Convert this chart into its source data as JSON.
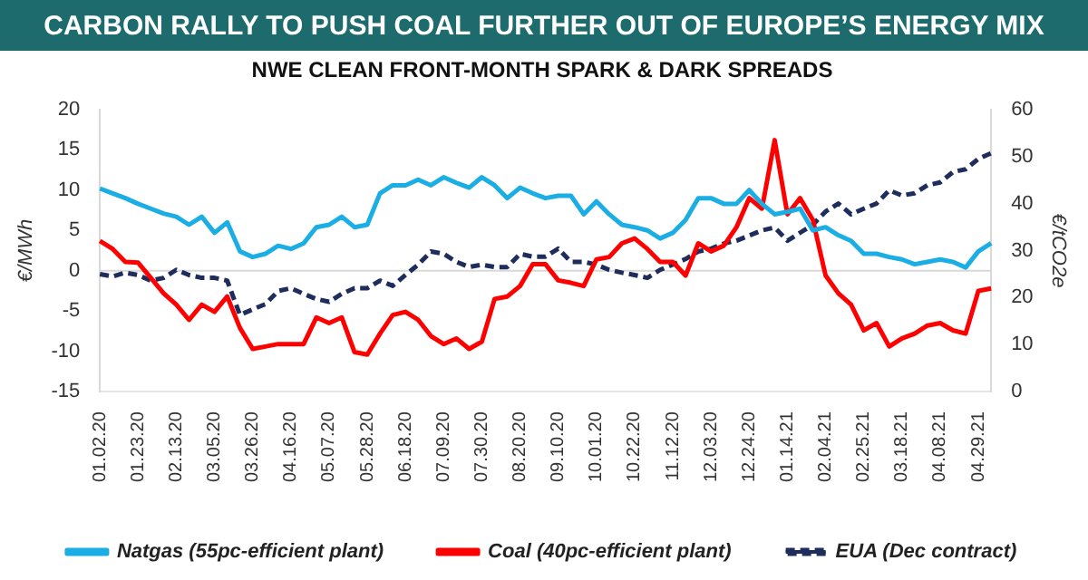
{
  "chart_data": {
    "type": "line",
    "title": "CARBON RALLY TO PUSH COAL FURTHER OUT OF EUROPE’S ENERGY MIX",
    "subtitle": "NWE CLEAN FRONT-MONTH SPARK & DARK SPREADS",
    "ylabel": "€/MWh",
    "y2label": "€/tCO2e",
    "categories": [
      "01.02.20",
      null,
      null,
      "01.23.20",
      null,
      null,
      "02.13.20",
      null,
      null,
      "03.05.20",
      null,
      null,
      "03.26.20",
      null,
      null,
      "04.16.20",
      null,
      null,
      "05.07.20",
      null,
      null,
      "05.28.20",
      null,
      null,
      "06.18.20",
      null,
      null,
      "07.09.20",
      null,
      null,
      "07.30.20",
      null,
      null,
      "08.20.20",
      null,
      null,
      "09.10.20",
      null,
      null,
      "10.01.20",
      null,
      null,
      "10.22.20",
      null,
      null,
      "11.12.20",
      null,
      null,
      "12.03.20",
      null,
      null,
      "12.24.20",
      null,
      null,
      "01.14.21",
      null,
      null,
      "02.04.21",
      null,
      null,
      "02.25.21",
      null,
      null,
      "03.18.21",
      null,
      null,
      "04.08.21",
      null,
      null,
      "04.29.21",
      null
    ],
    "series": [
      {
        "name": "Natgas (55pc-efficient plant)",
        "color": "#1aaee5",
        "line_style": "solid",
        "values": [
          10.2,
          9.6,
          9,
          8.3,
          7.7,
          7.1,
          6.7,
          5.7,
          6.7,
          4.7,
          6,
          2.4,
          1.7,
          2.1,
          3.1,
          2.7,
          3.4,
          5.4,
          5.7,
          6.7,
          5.4,
          5.7,
          9.6,
          10.6,
          10.6,
          11.3,
          10.6,
          11.6,
          10.9,
          10.3,
          11.6,
          10.6,
          9,
          10.3,
          9.6,
          9,
          9.3,
          9.3,
          7,
          8.6,
          7,
          5.7,
          5.4,
          5,
          4,
          4.7,
          6.3,
          9,
          9,
          8.3,
          8.3,
          10,
          8.3,
          7,
          7.3,
          7.7,
          5,
          5.4,
          4.4,
          3.7,
          2.1,
          2.1,
          1.7,
          1.4,
          0.8,
          1.1,
          1.4,
          1.1,
          0.4,
          2.4,
          3.4
        ]
      },
      {
        "name": "Coal (40pc-efficient plant)",
        "color": "#ff0000",
        "line_style": "solid",
        "values": [
          3.7,
          2.7,
          1.1,
          1,
          -0.9,
          -2.8,
          -4.2,
          -6.1,
          -4.2,
          -5.1,
          -3.2,
          -7.1,
          -9.7,
          -9.4,
          -9.1,
          -9.1,
          -9.1,
          -5.8,
          -6.5,
          -5.8,
          -10.1,
          -10.4,
          -7.8,
          -5.5,
          -5.1,
          -6.1,
          -8.1,
          -9.1,
          -8.4,
          -9.7,
          -8.8,
          -3.5,
          -3.2,
          -1.9,
          0.8,
          0.8,
          -1.2,
          -1.5,
          -1.9,
          1.4,
          1.7,
          3.4,
          4,
          2.7,
          1.1,
          1.1,
          -0.6,
          3.4,
          2.4,
          3.1,
          5.4,
          9,
          7.7,
          16.2,
          7,
          9,
          6.3,
          -0.6,
          -2.8,
          -4.2,
          -7.4,
          -6.5,
          -9.4,
          -8.4,
          -7.8,
          -6.8,
          -6.5,
          -7.4,
          -7.8,
          -2.5,
          -2.2
        ]
      },
      {
        "name": "EUA (Dec contract)",
        "color": "#1f2d5c",
        "line_style": "dashed",
        "axis": "y2",
        "values": [
          25,
          24.5,
          25.3,
          24.8,
          23.6,
          24.2,
          25.9,
          24.8,
          24.2,
          24.2,
          23.6,
          16.3,
          17.5,
          18.6,
          21.4,
          22,
          20.8,
          19.7,
          19.1,
          20.8,
          22,
          22,
          23.6,
          22.5,
          24.8,
          27,
          29.8,
          29.3,
          27.6,
          26.5,
          27,
          26.5,
          26.5,
          29.3,
          28.7,
          28.7,
          30.4,
          27.6,
          27.6,
          27,
          25.9,
          25.3,
          24.8,
          24.2,
          25.9,
          27,
          28.2,
          29.8,
          30.4,
          31.5,
          32.1,
          33.2,
          34.3,
          34.9,
          32.1,
          33.8,
          35.5,
          38.3,
          40,
          37.7,
          38.9,
          40,
          42.8,
          41.7,
          42.2,
          43.9,
          44.5,
          46.7,
          47.3,
          49.5,
          50.7
        ]
      }
    ],
    "ylim": [
      -15,
      20
    ],
    "yticks": [
      -15,
      -10,
      -5,
      0,
      5,
      10,
      15,
      20
    ],
    "y2lim": [
      0,
      60
    ],
    "y2ticks": [
      0,
      10,
      20,
      30,
      40,
      50,
      60
    ],
    "ref_lines": [
      {
        "axis": "y",
        "value": 0,
        "color": "#d9d9d9"
      }
    ],
    "grid": false,
    "legend": "bottom",
    "marker": "none"
  }
}
